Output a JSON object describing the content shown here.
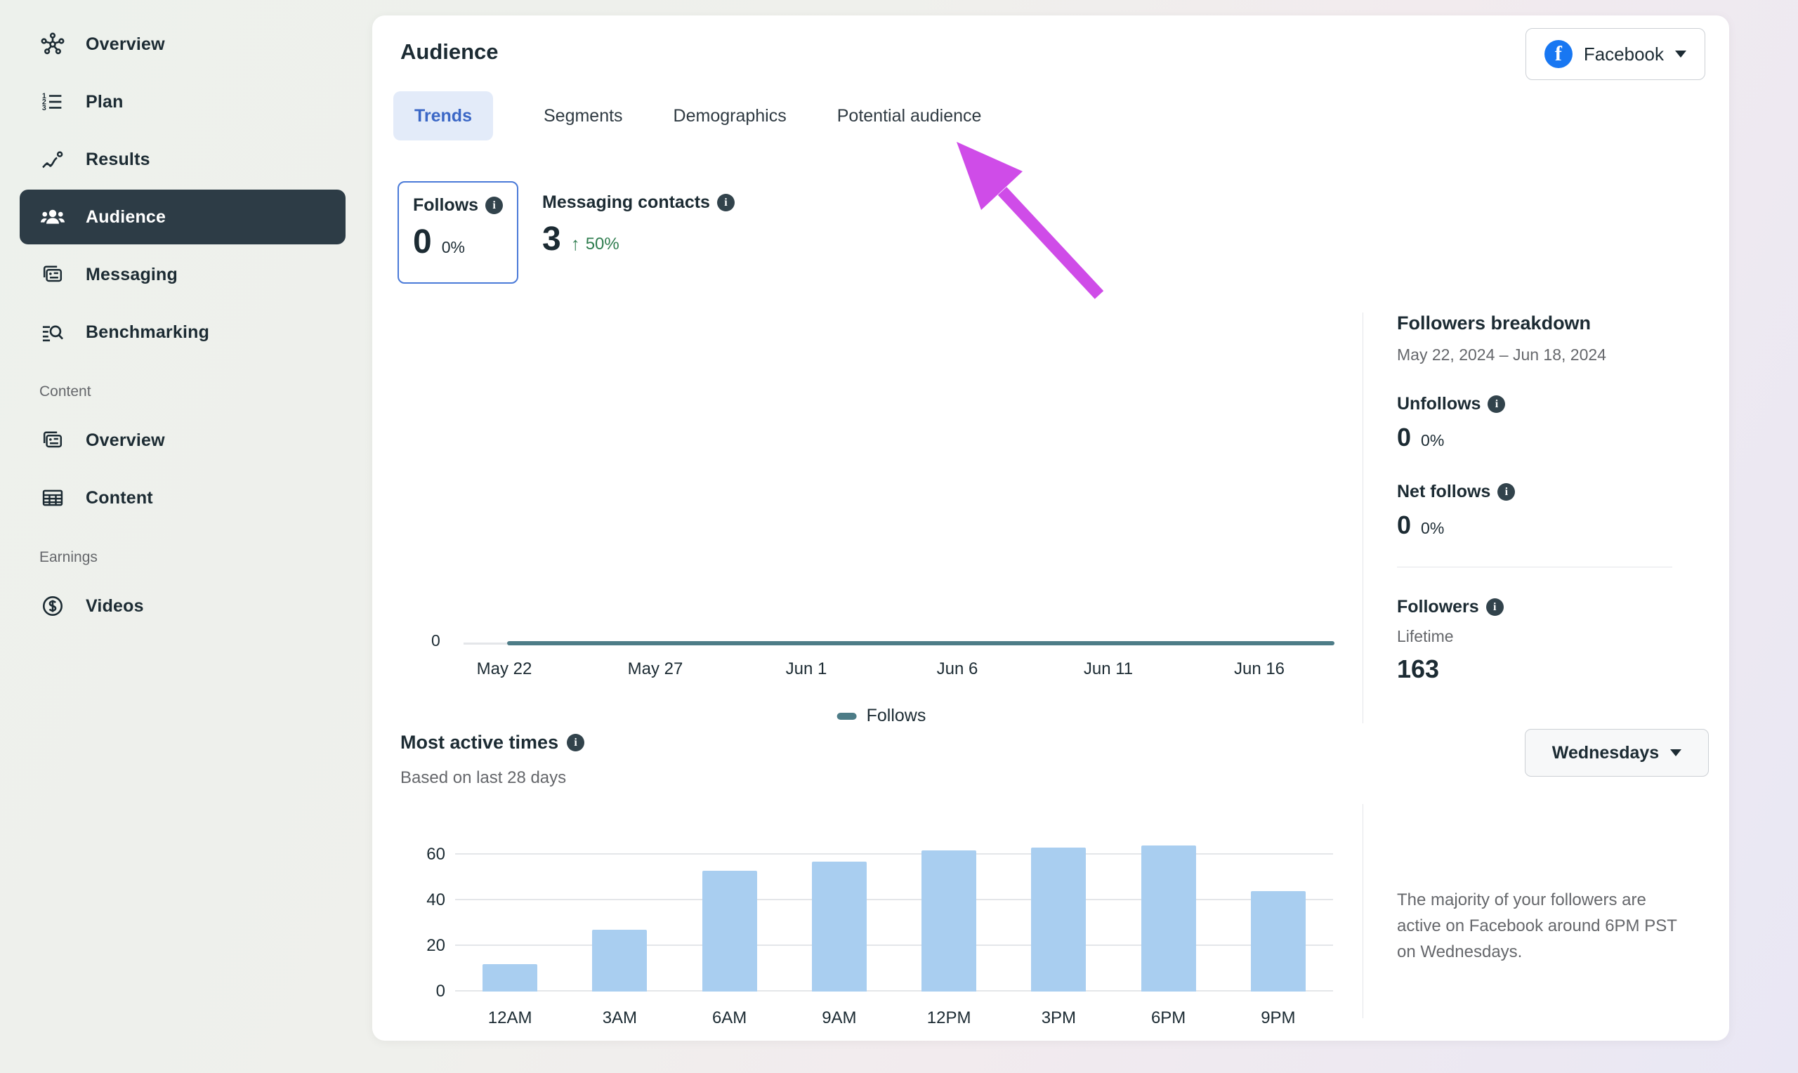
{
  "sidebar": {
    "items_main": [
      {
        "label": "Overview",
        "icon": "overview-hub-icon",
        "active": false
      },
      {
        "label": "Plan",
        "icon": "numbered-list-icon",
        "active": false
      },
      {
        "label": "Results",
        "icon": "line-chart-icon",
        "active": false
      },
      {
        "label": "Audience",
        "icon": "people-icon",
        "active": true
      },
      {
        "label": "Messaging",
        "icon": "message-cards-icon",
        "active": false
      },
      {
        "label": "Benchmarking",
        "icon": "search-list-icon",
        "active": false
      }
    ],
    "section_content": "Content",
    "items_content": [
      {
        "label": "Overview",
        "icon": "content-cards-icon"
      },
      {
        "label": "Content",
        "icon": "table-grid-icon"
      }
    ],
    "section_earnings": "Earnings",
    "items_earnings": [
      {
        "label": "Videos",
        "icon": "dollar-circle-icon"
      }
    ]
  },
  "header": {
    "title": "Audience",
    "account_name": "Facebook"
  },
  "tabs": {
    "items": [
      {
        "label": "Trends",
        "active": true
      },
      {
        "label": "Segments",
        "active": false
      },
      {
        "label": "Demographics",
        "active": false
      },
      {
        "label": "Potential audience",
        "active": false
      }
    ]
  },
  "metrics": {
    "follows": {
      "label": "Follows",
      "value": "0",
      "pct": "0%",
      "selected": true
    },
    "messaging_contacts": {
      "label": "Messaging contacts",
      "value": "3",
      "delta_direction": "up",
      "delta": "50%"
    }
  },
  "followers_breakdown": {
    "title": "Followers breakdown",
    "date_range": "May 22, 2024 – Jun 18, 2024",
    "unfollows": {
      "label": "Unfollows",
      "value": "0",
      "pct": "0%"
    },
    "net_follows": {
      "label": "Net follows",
      "value": "0",
      "pct": "0%"
    },
    "followers": {
      "label": "Followers",
      "sublabel": "Lifetime",
      "value": "163"
    }
  },
  "most_active": {
    "title": "Most active times",
    "subtitle": "Based on last 28 days",
    "day_filter": "Wednesdays",
    "insight": "The majority of your followers are active on Facebook around 6PM PST on Wednesdays."
  },
  "chart_data": [
    {
      "type": "line",
      "name": "follows-trend",
      "x": [
        "May 22",
        "May 27",
        "Jun 1",
        "Jun 6",
        "Jun 11",
        "Jun 16"
      ],
      "series": [
        {
          "name": "Follows",
          "values": [
            0,
            0,
            0,
            0,
            0,
            0
          ]
        }
      ],
      "yticks": [
        0
      ],
      "ylim": [
        0,
        1
      ],
      "grid": false,
      "legend_position": "bottom-center",
      "line_color": "#4d7c87"
    },
    {
      "type": "bar",
      "name": "most-active-times",
      "title": "Most active times",
      "categories": [
        "12AM",
        "3AM",
        "6AM",
        "9AM",
        "12PM",
        "3PM",
        "6PM",
        "9PM"
      ],
      "values": [
        12,
        27,
        53,
        57,
        62,
        63,
        64,
        44
      ],
      "yticks": [
        0,
        20,
        40,
        60
      ],
      "ylim": [
        0,
        64
      ],
      "grid": true,
      "xlabel": "",
      "ylabel": "",
      "bar_color": "#a9cef0"
    }
  ],
  "colors": {
    "accent_blue": "#3b67c6",
    "active_tab_bg": "#e3ebf9",
    "selected_card_border": "#4a7ad8",
    "positive_green": "#2f7d4f",
    "line_teal": "#4d7c87",
    "bar_blue": "#a9cef0",
    "active_nav_bg": "#2d3c46",
    "facebook_blue": "#1877f2",
    "annotation_magenta": "#cf4ce8"
  }
}
